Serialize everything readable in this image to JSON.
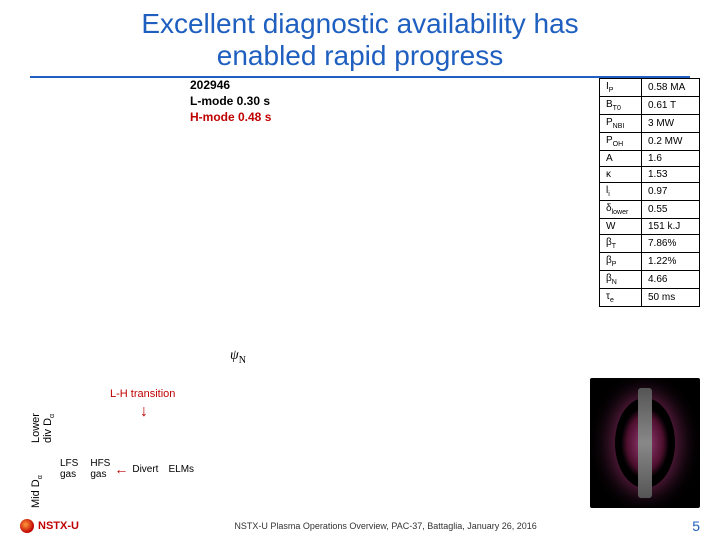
{
  "title_line1": "Excellent diagnostic availability has",
  "title_line2": "enabled rapid progress",
  "shot": {
    "id": "202946",
    "lmode": "L-mode 0.30 s",
    "hmode": "H-mode 0.48 s"
  },
  "params": [
    {
      "sym": "I",
      "sub": "P",
      "val": "0.58 MA"
    },
    {
      "sym": "B",
      "sub": "T0",
      "val": "0.61 T"
    },
    {
      "sym": "P",
      "sub": "NBI",
      "val": "3 MW"
    },
    {
      "sym": "P",
      "sub": "OH",
      "val": "0.2 MW"
    },
    {
      "sym": "A",
      "sub": "",
      "val": "1.6"
    },
    {
      "sym": "κ",
      "sub": "",
      "val": "1.53"
    },
    {
      "sym": "l",
      "sub": "i",
      "val": "0.97"
    },
    {
      "sym": "δ",
      "sub": "lower",
      "val": "0.55"
    },
    {
      "sym": "W",
      "sub": "",
      "val": "151 k.J"
    },
    {
      "sym": "β",
      "sub": "T",
      "val": "7.86%"
    },
    {
      "sym": "β",
      "sub": "P",
      "val": "1.22%"
    },
    {
      "sym": "β",
      "sub": "N",
      "val": "4.66"
    },
    {
      "sym": "τ",
      "sub": "e",
      "val": "50 ms"
    }
  ],
  "psi_label": "ψ",
  "psi_sub": "N",
  "ylabels": {
    "lower_div": "Lower\ndiv D",
    "lower_div_sub": "α",
    "mid": "Mid D",
    "mid_sub": "α"
  },
  "lh_transition": "L-H transition",
  "gas": {
    "lfs": "LFS\ngas",
    "hfs": "HFS\ngas",
    "divert": "Divert",
    "elms": "ELMs"
  },
  "footer": {
    "logo": "NSTX-U",
    "text": "NSTX-U Plasma Operations Overview, PAC-37, Battaglia, January 26, 2016",
    "page": "5"
  },
  "colors": {
    "title": "#1f5fbf",
    "hmode": "#c00000"
  }
}
